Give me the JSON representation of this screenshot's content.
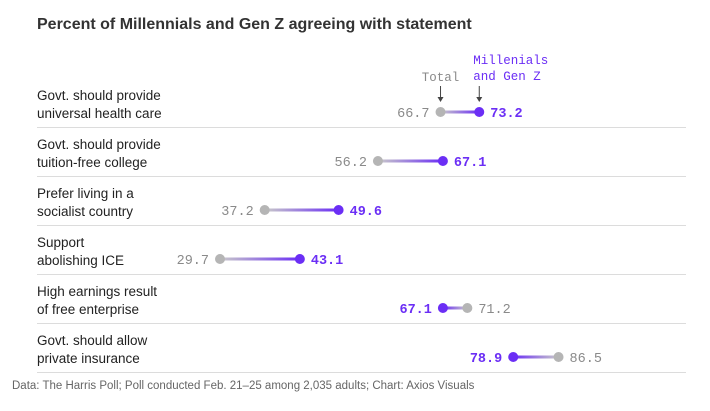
{
  "title": "Percent of Millennials and Gen Z agreeing with statement",
  "source": "Data: The Harris Poll; Poll conducted Feb. 21–25 among 2,035 adults; Chart: Axios Visuals",
  "colors": {
    "total": "#b5b5b5",
    "millennials": "#6b2ef5",
    "text_total": "#8a8a8a",
    "grid": "#dcdcdc"
  },
  "legend": {
    "total": "Total",
    "millennials_line1": "Millenials",
    "millennials_line2": "and Gen Z"
  },
  "chart_data": {
    "type": "dumbbell",
    "title": "Percent of Millennials and Gen Z agreeing with statement",
    "categories": [
      {
        "line1": "Govt. should provide",
        "line2": "universal health care"
      },
      {
        "line1": "Govt. should provide",
        "line2": "tuition-free college"
      },
      {
        "line1": "Prefer living in a",
        "line2": "socialist country"
      },
      {
        "line1": "Support",
        "line2": "abolishing ICE"
      },
      {
        "line1": "High earnings result",
        "line2": "of free enterprise"
      },
      {
        "line1": "Govt. should allow",
        "line2": "private insurance"
      }
    ],
    "series": [
      {
        "name": "Total",
        "values": [
          66.7,
          56.2,
          37.2,
          29.7,
          71.2,
          86.5
        ]
      },
      {
        "name": "Millenials and Gen Z",
        "values": [
          73.2,
          67.1,
          49.6,
          43.1,
          67.1,
          78.9
        ]
      }
    ]
  }
}
